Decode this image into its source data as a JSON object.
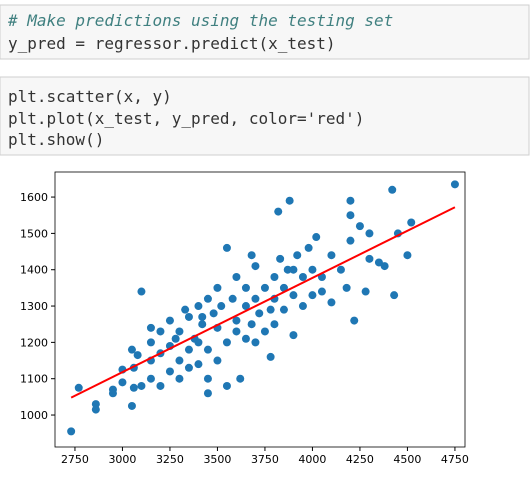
{
  "cells": [
    {
      "lines": [
        "# Make predictions using the testing set",
        "y_pred = regressor.predict(x_test)"
      ]
    },
    {
      "lines": [
        "plt.scatter(x, y)",
        "plt.plot(x_test, y_pred, color='red')",
        "plt.show()"
      ]
    }
  ],
  "chart_data": {
    "type": "scatter",
    "xlim": [
      2645,
      4803
    ],
    "ylim": [
      912,
      1669
    ],
    "xticks": [
      2750,
      3000,
      3250,
      3500,
      3750,
      4000,
      4250,
      4500,
      4750
    ],
    "yticks": [
      1000,
      1100,
      1200,
      1300,
      1400,
      1500,
      1600
    ],
    "series": [
      {
        "color": "#1f77b4",
        "x": [
          2730,
          2770,
          2860,
          2860,
          2950,
          2950,
          3000,
          3000,
          3050,
          3060,
          3060,
          3080,
          3100,
          3100,
          3150,
          3150,
          3150,
          3200,
          3200,
          3200,
          3250,
          3250,
          3250,
          3280,
          3300,
          3300,
          3300,
          3350,
          3350,
          3380,
          3400,
          3400,
          3400,
          3420,
          3450,
          3450,
          3450,
          3480,
          3500,
          3500,
          3500,
          3520,
          3550,
          3550,
          3580,
          3600,
          3600,
          3600,
          3620,
          3650,
          3650,
          3680,
          3700,
          3700,
          3700,
          3720,
          3750,
          3750,
          3780,
          3780,
          3800,
          3800,
          3800,
          3820,
          3830,
          3850,
          3850,
          3870,
          3880,
          3900,
          3900,
          3920,
          3950,
          3950,
          3980,
          4000,
          4000,
          4020,
          4050,
          4050,
          4100,
          4150,
          4180,
          4200,
          4200,
          4200,
          4220,
          4250,
          4280,
          4300,
          4300,
          4350,
          4380,
          4420,
          4430,
          4450,
          4500,
          4520,
          4750,
          3050,
          3150,
          3350,
          3450,
          3550,
          3650,
          3680,
          3900,
          4100,
          3420,
          3330
        ],
        "values": [
          955,
          1075,
          1030,
          1015,
          1070,
          1060,
          1090,
          1125,
          1025,
          1075,
          1130,
          1165,
          1340,
          1080,
          1200,
          1150,
          1100,
          1080,
          1170,
          1230,
          1120,
          1190,
          1260,
          1210,
          1150,
          1230,
          1100,
          1180,
          1270,
          1210,
          1300,
          1140,
          1200,
          1250,
          1320,
          1180,
          1100,
          1280,
          1240,
          1350,
          1150,
          1300,
          1200,
          1460,
          1320,
          1260,
          1380,
          1230,
          1100,
          1300,
          1350,
          1250,
          1200,
          1320,
          1410,
          1280,
          1350,
          1230,
          1290,
          1160,
          1380,
          1320,
          1250,
          1560,
          1430,
          1350,
          1290,
          1400,
          1590,
          1330,
          1220,
          1440,
          1380,
          1300,
          1460,
          1330,
          1400,
          1490,
          1340,
          1380,
          1440,
          1400,
          1350,
          1590,
          1550,
          1480,
          1260,
          1520,
          1340,
          1500,
          1430,
          1420,
          1410,
          1620,
          1330,
          1500,
          1440,
          1530,
          1635,
          1180,
          1240,
          1130,
          1060,
          1080,
          1210,
          1440,
          1400,
          1310,
          1270,
          1290
        ]
      },
      {
        "type": "line",
        "color": "red",
        "x": [
          2730,
          4750
        ],
        "values": [
          1048,
          1572
        ]
      }
    ]
  }
}
